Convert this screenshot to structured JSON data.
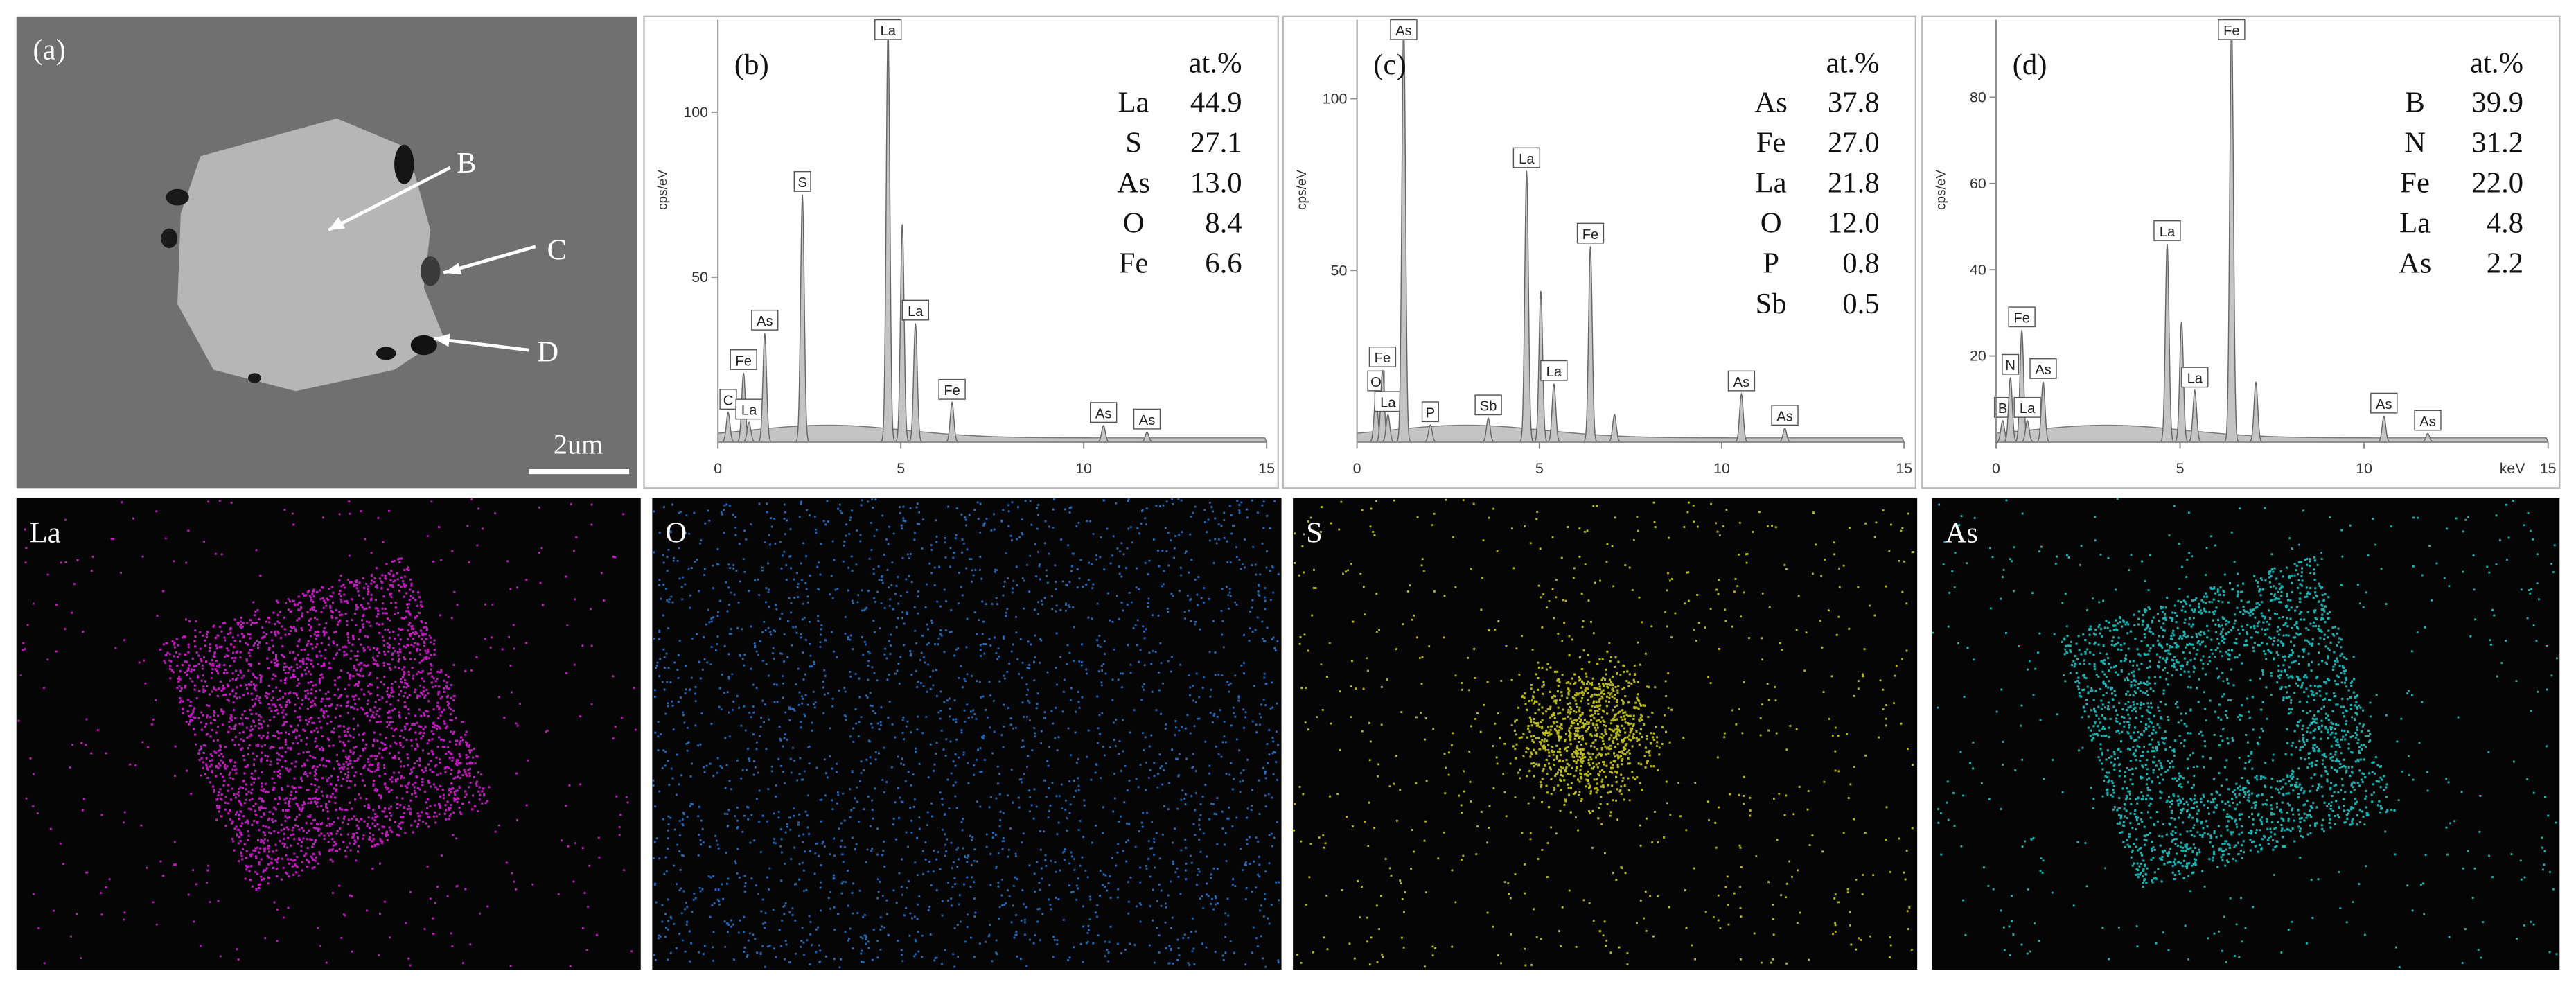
{
  "panel_a": {
    "label": "(a)",
    "markers": [
      "B",
      "C",
      "D"
    ],
    "scale_bar": "2um"
  },
  "spectra": [
    {
      "label": "(b)",
      "ylabel": "cps/eV",
      "xlim": [
        0,
        15
      ],
      "xticks": [
        0,
        5,
        10,
        15
      ],
      "ylim": [
        0,
        128
      ],
      "yticks": [
        50,
        100
      ],
      "color": "#c4c4c4",
      "composition_header": "at.%",
      "composition": [
        [
          "La",
          "44.9"
        ],
        [
          "S",
          "27.1"
        ],
        [
          "As",
          "13.0"
        ],
        [
          "O",
          "8.4"
        ],
        [
          "Fe",
          "6.6"
        ]
      ],
      "peaks": [
        {
          "label": "C",
          "x": 0.28,
          "y": 9
        },
        {
          "label": "Fe",
          "x": 0.7,
          "y": 21
        },
        {
          "label": "La",
          "x": 0.85,
          "y": 6
        },
        {
          "label": "As",
          "x": 1.28,
          "y": 33
        },
        {
          "label": "S",
          "x": 2.31,
          "y": 75
        },
        {
          "label": "La",
          "x": 4.65,
          "y": 125
        },
        {
          "label": null,
          "x": 5.04,
          "y": 66
        },
        {
          "label": "La",
          "x": 5.4,
          "y": 36
        },
        {
          "label": "Fe",
          "x": 6.4,
          "y": 12
        },
        {
          "label": "As",
          "x": 10.54,
          "y": 5
        },
        {
          "label": "As",
          "x": 11.73,
          "y": 3
        }
      ]
    },
    {
      "label": "(c)",
      "ylabel": "cps/eV",
      "xlim": [
        0,
        15
      ],
      "xticks": [
        0,
        5,
        10,
        15
      ],
      "ylim": [
        0,
        123
      ],
      "yticks": [
        50,
        100
      ],
      "color": "#c4c4c4",
      "composition_header": "at.%",
      "composition": [
        [
          "As",
          "37.8"
        ],
        [
          "Fe",
          "27.0"
        ],
        [
          "La",
          "21.8"
        ],
        [
          "O",
          "12.0"
        ],
        [
          "P",
          "0.8"
        ],
        [
          "Sb",
          "0.5"
        ]
      ],
      "peaks": [
        {
          "label": "O",
          "x": 0.52,
          "y": 14
        },
        {
          "label": "Fe",
          "x": 0.7,
          "y": 21
        },
        {
          "label": "La",
          "x": 0.85,
          "y": 8
        },
        {
          "label": "As",
          "x": 1.28,
          "y": 123
        },
        {
          "label": "P",
          "x": 2.01,
          "y": 5
        },
        {
          "label": "Sb",
          "x": 3.6,
          "y": 7
        },
        {
          "label": "La",
          "x": 4.65,
          "y": 79
        },
        {
          "label": null,
          "x": 5.04,
          "y": 44
        },
        {
          "label": "La",
          "x": 5.4,
          "y": 17
        },
        {
          "label": "Fe",
          "x": 6.4,
          "y": 57
        },
        {
          "label": null,
          "x": 7.06,
          "y": 8
        },
        {
          "label": "As",
          "x": 10.54,
          "y": 14
        },
        {
          "label": "As",
          "x": 11.73,
          "y": 4
        }
      ]
    },
    {
      "label": "(d)",
      "ylabel": "cps/eV",
      "xlabel": "keV",
      "xlim": [
        0,
        15
      ],
      "xticks": [
        0,
        5,
        10,
        15
      ],
      "ylim": [
        0,
        98
      ],
      "yticks": [
        20,
        40,
        60,
        80
      ],
      "color": "#c4c4c4",
      "composition_header": "at.%",
      "composition": [
        [
          "B",
          "39.9"
        ],
        [
          "N",
          "31.2"
        ],
        [
          "Fe",
          "22.0"
        ],
        [
          "La",
          "4.8"
        ],
        [
          "As",
          "2.2"
        ]
      ],
      "peaks": [
        {
          "label": "B",
          "x": 0.18,
          "y": 5
        },
        {
          "label": "N",
          "x": 0.39,
          "y": 15
        },
        {
          "label": "Fe",
          "x": 0.7,
          "y": 26
        },
        {
          "label": "La",
          "x": 0.85,
          "y": 5
        },
        {
          "label": "As",
          "x": 1.28,
          "y": 14
        },
        {
          "label": "La",
          "x": 4.65,
          "y": 46
        },
        {
          "label": null,
          "x": 5.04,
          "y": 28
        },
        {
          "label": "La",
          "x": 5.4,
          "y": 12
        },
        {
          "label": "Fe",
          "x": 6.4,
          "y": 98
        },
        {
          "label": null,
          "x": 7.06,
          "y": 14
        },
        {
          "label": "As",
          "x": 10.54,
          "y": 6
        },
        {
          "label": "As",
          "x": 11.73,
          "y": 2
        }
      ]
    }
  ],
  "maps": [
    {
      "label": "La",
      "color": "#e020e0"
    },
    {
      "label": "O",
      "color": "#2a7ad8"
    },
    {
      "label": "S",
      "color": "#d8d820"
    },
    {
      "label": "As",
      "color": "#20d0d0"
    }
  ]
}
